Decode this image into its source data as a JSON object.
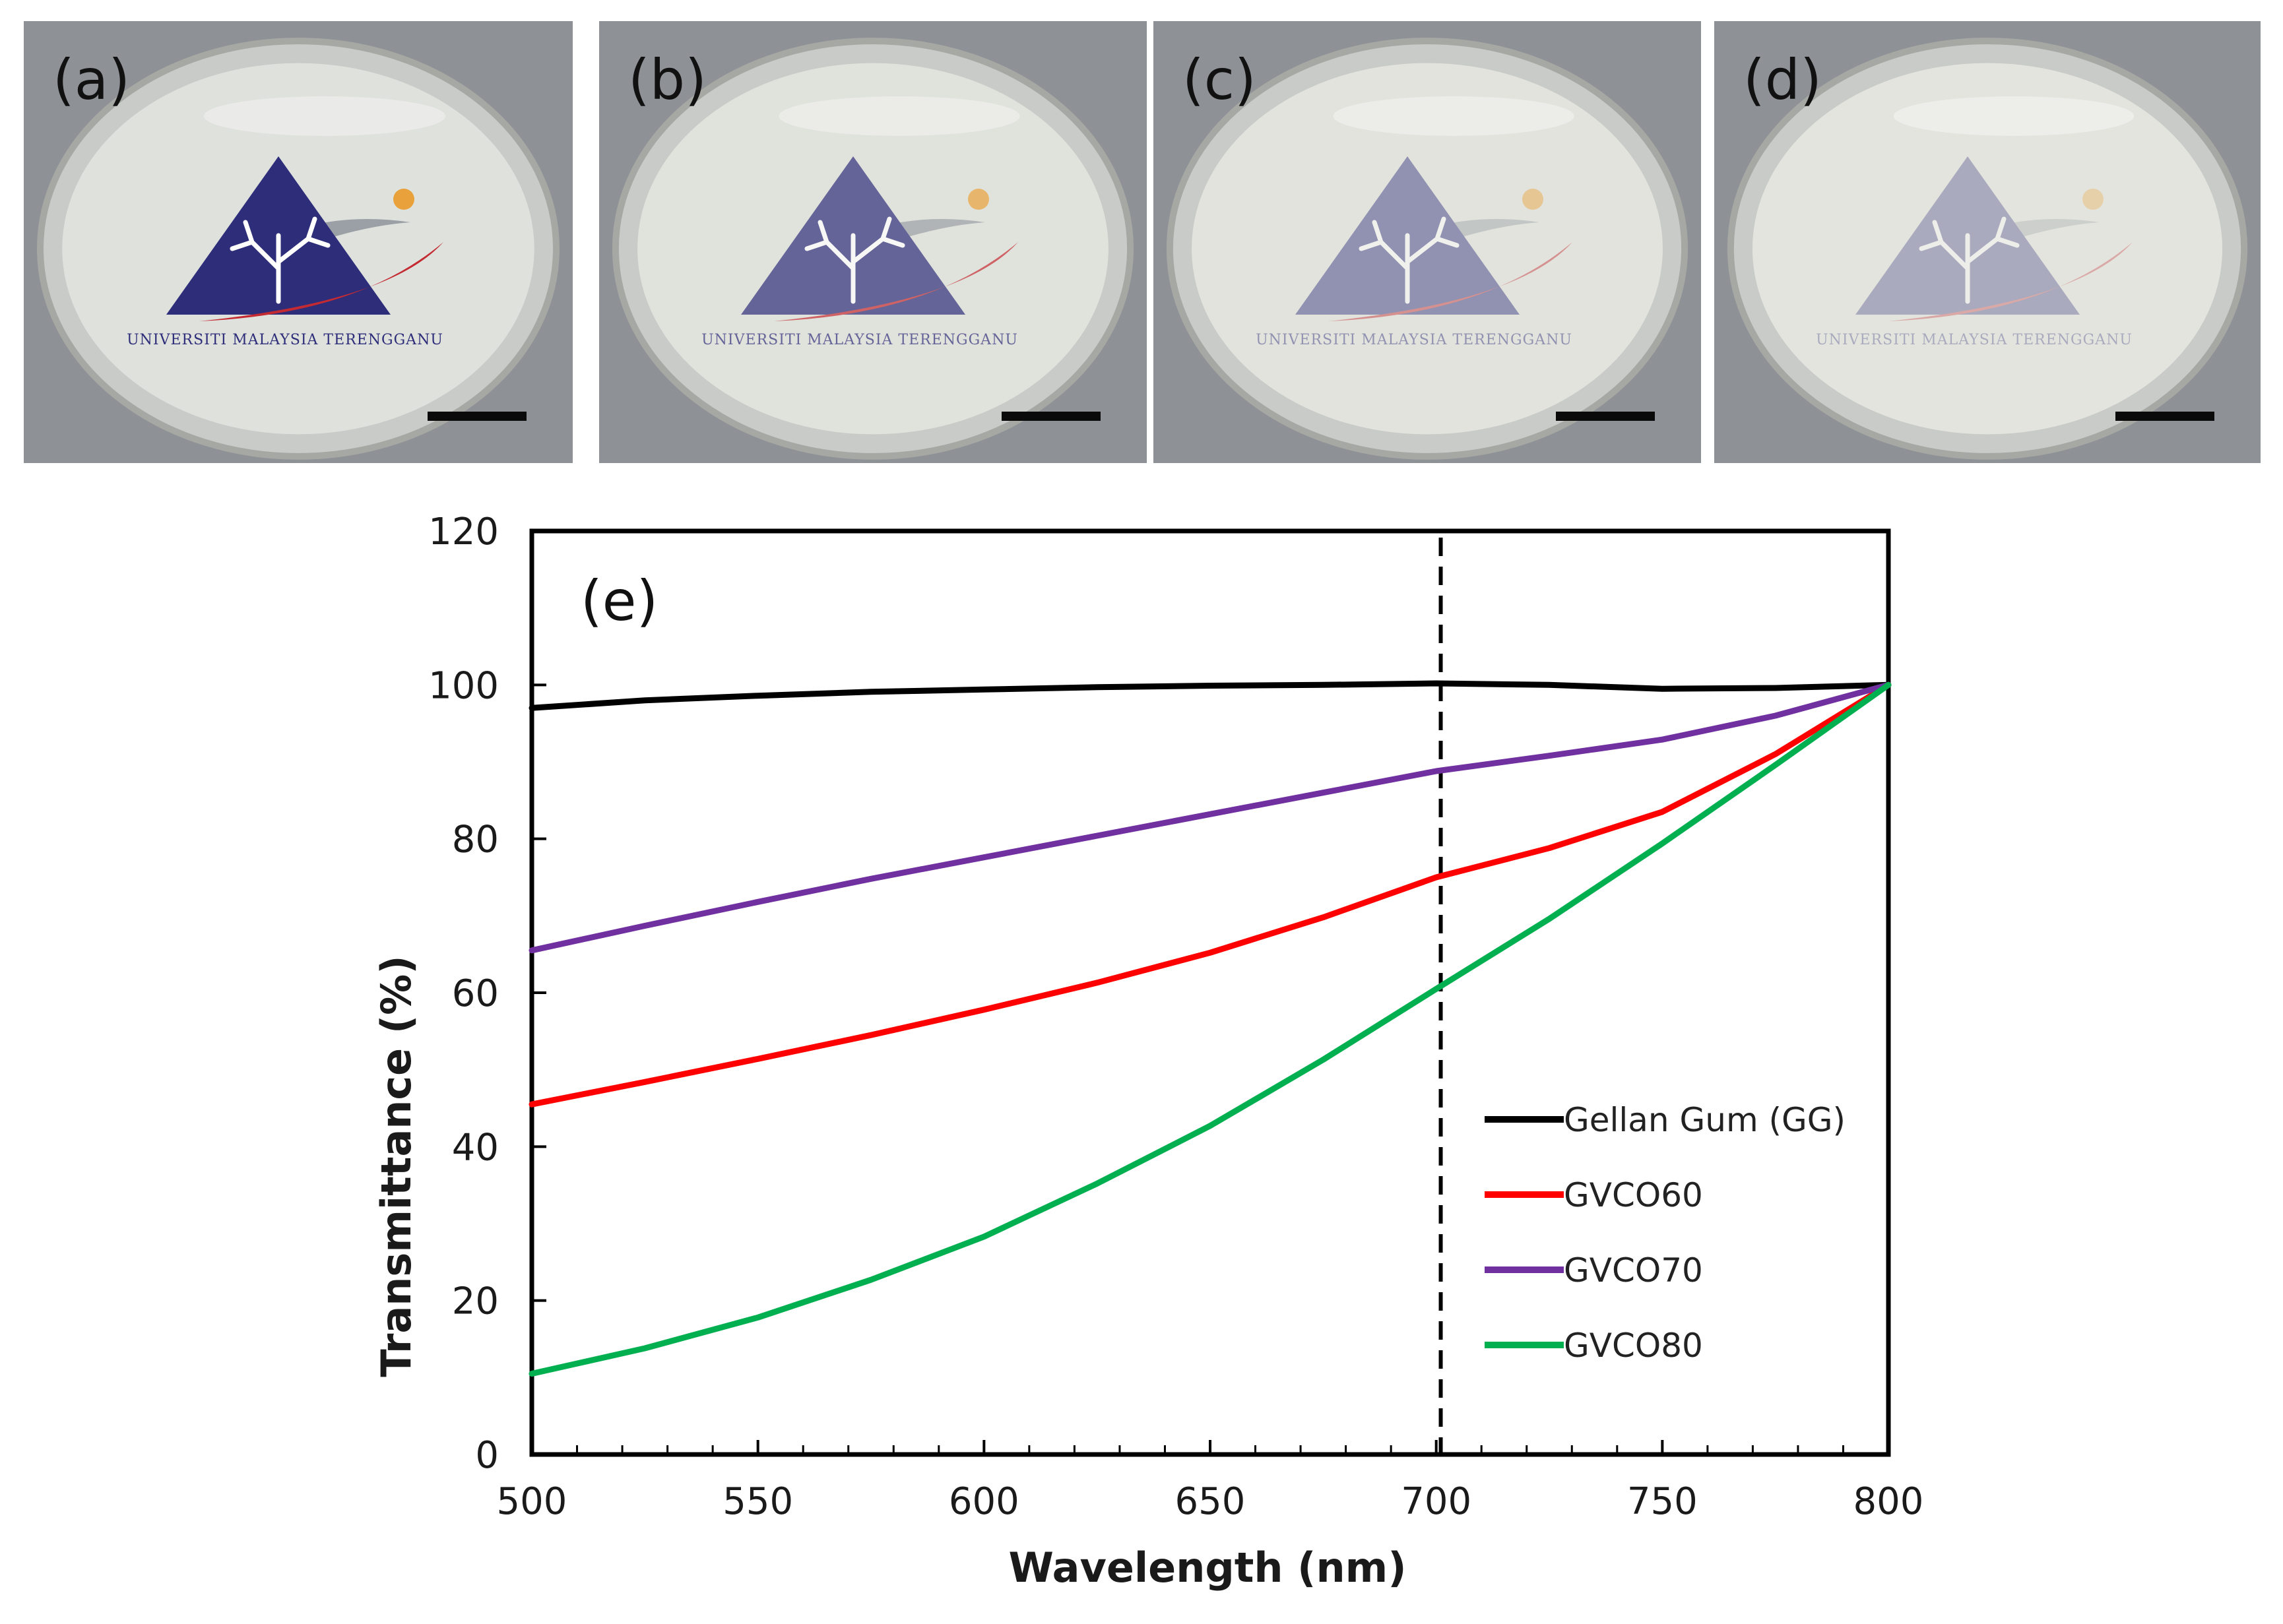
{
  "panels": [
    {
      "label": "(a)",
      "logo_text": "Universiti Malaysia Terengganu",
      "haze": 0.0
    },
    {
      "label": "(b)",
      "logo_text": "Universiti Malaysia Terengganu",
      "haze": 0.3
    },
    {
      "label": "(c)",
      "logo_text": "Universiti Malaysia Terengganu",
      "haze": 0.55
    },
    {
      "label": "(d)",
      "logo_text": "Universiti Malaysia Terengganu",
      "haze": 0.68
    }
  ],
  "chart_data": {
    "type": "line",
    "panel_label": "(e)",
    "xlabel": "Wavelength (nm)",
    "ylabel": "Transmittance (%)",
    "xlim": [
      500,
      800
    ],
    "ylim": [
      0,
      120
    ],
    "xticks": [
      500,
      550,
      600,
      650,
      700,
      750,
      800
    ],
    "yticks": [
      0,
      20,
      40,
      60,
      80,
      100,
      120
    ],
    "reference_line_x": 701,
    "legend_position": "lower-right",
    "x": [
      500,
      525,
      550,
      575,
      600,
      625,
      650,
      675,
      700,
      725,
      750,
      775,
      800
    ],
    "series": [
      {
        "name": "Gellan Gum (GG)",
        "color": "#000000",
        "values": [
          97.0,
          98.0,
          98.6,
          99.1,
          99.4,
          99.7,
          99.9,
          100.0,
          100.2,
          100.0,
          99.5,
          99.6,
          100.0
        ]
      },
      {
        "name": "GVCO60",
        "color": "#ff0000",
        "values": [
          45.5,
          48.4,
          51.4,
          54.5,
          57.8,
          61.3,
          65.2,
          69.8,
          75.0,
          78.8,
          83.5,
          91.0,
          100.0
        ]
      },
      {
        "name": "GVCO70",
        "color": "#7030a0",
        "values": [
          65.5,
          68.7,
          71.8,
          74.8,
          77.6,
          80.4,
          83.2,
          86.0,
          88.8,
          90.8,
          92.9,
          96.0,
          100.0
        ]
      },
      {
        "name": "GVCO80",
        "color": "#00b050",
        "values": [
          10.5,
          13.8,
          17.8,
          22.7,
          28.3,
          35.2,
          42.7,
          51.3,
          60.5,
          69.6,
          79.4,
          89.6,
          100.0
        ]
      }
    ]
  }
}
